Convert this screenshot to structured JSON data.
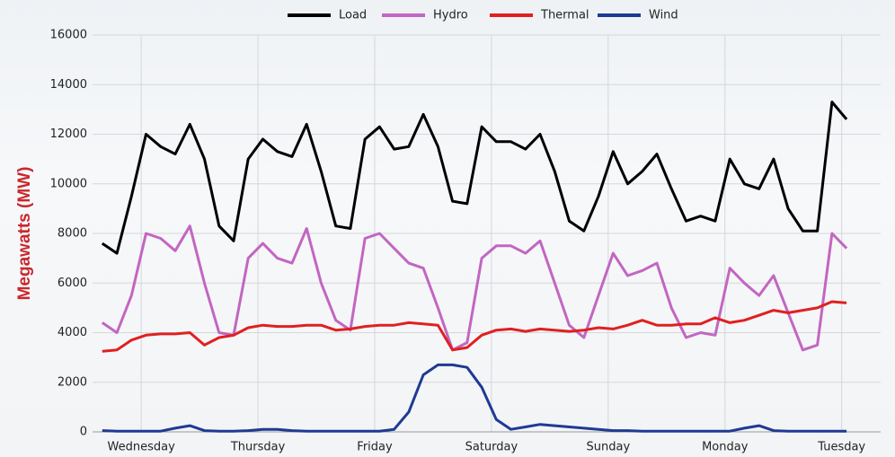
{
  "chart_data": {
    "type": "line",
    "y_label": "Megawatts (MW)",
    "x": [
      -8,
      -5,
      -2,
      1,
      4,
      7,
      10,
      13,
      16,
      19,
      22,
      25,
      28,
      31,
      34,
      37,
      40,
      43,
      46,
      49,
      52,
      55,
      58,
      61,
      64,
      67,
      70,
      73,
      76,
      79,
      82,
      85,
      88,
      91,
      94,
      97,
      100,
      103,
      106,
      109,
      112,
      115,
      118,
      121,
      124,
      127,
      130,
      133,
      136,
      139,
      142,
      145
    ],
    "xlim": [
      -10,
      152
    ],
    "xticks": [
      {
        "value": 0,
        "label": "Wednesday"
      },
      {
        "value": 24,
        "label": "Thursday"
      },
      {
        "value": 48,
        "label": "Friday"
      },
      {
        "value": 72,
        "label": "Saturday"
      },
      {
        "value": 96,
        "label": "Sunday"
      },
      {
        "value": 120,
        "label": "Monday"
      },
      {
        "value": 144,
        "label": "Tuesday"
      }
    ],
    "ylim": [
      0,
      16000
    ],
    "yticks": [
      0,
      2000,
      4000,
      6000,
      8000,
      10000,
      12000,
      14000,
      16000
    ],
    "grid": true,
    "legend": "top",
    "series": [
      {
        "name": "Load",
        "color": "#000000",
        "values": [
          7600,
          7200,
          9500,
          12000,
          11500,
          11200,
          12400,
          11000,
          8300,
          7700,
          11000,
          11800,
          11300,
          11100,
          12400,
          10500,
          8300,
          8200,
          11800,
          12300,
          11400,
          11500,
          12800,
          11500,
          9300,
          9200,
          12300,
          11700,
          11700,
          11400,
          12000,
          10500,
          8500,
          8100,
          9500,
          11300,
          10000,
          10500,
          11200,
          9800,
          8500,
          8700,
          8500,
          11000,
          10000,
          9800,
          11000,
          9000,
          8100,
          8100,
          13300,
          12600
        ]
      },
      {
        "name": "Hydro",
        "color": "#c266c2",
        "values": [
          4400,
          4000,
          5500,
          8000,
          7800,
          7300,
          8300,
          6000,
          4000,
          3900,
          7000,
          7600,
          7000,
          6800,
          8200,
          6000,
          4500,
          4100,
          7800,
          8000,
          7400,
          6800,
          6600,
          5000,
          3300,
          3600,
          7000,
          7500,
          7500,
          7200,
          7700,
          6000,
          4300,
          3800,
          5500,
          7200,
          6300,
          6500,
          6800,
          5000,
          3800,
          4000,
          3900,
          6600,
          6000,
          5500,
          6300,
          4800,
          3300,
          3500,
          8000,
          7400
        ]
      },
      {
        "name": "Thermal",
        "color": "#e02020",
        "values": [
          3250,
          3300,
          3700,
          3900,
          3950,
          3950,
          4000,
          3500,
          3800,
          3900,
          4200,
          4300,
          4250,
          4250,
          4300,
          4300,
          4100,
          4150,
          4250,
          4300,
          4300,
          4400,
          4350,
          4300,
          3300,
          3400,
          3900,
          4100,
          4150,
          4050,
          4150,
          4100,
          4050,
          4100,
          4200,
          4150,
          4300,
          4500,
          4300,
          4300,
          4350,
          4350,
          4600,
          4400,
          4500,
          4700,
          4900,
          4800,
          4900,
          5000,
          5250,
          5200
        ]
      },
      {
        "name": "Wind",
        "color": "#1f3a93",
        "values": [
          50,
          30,
          30,
          30,
          30,
          150,
          250,
          50,
          30,
          30,
          50,
          100,
          100,
          50,
          30,
          30,
          30,
          30,
          30,
          30,
          100,
          800,
          2300,
          2700,
          2700,
          2600,
          1800,
          500,
          100,
          200,
          300,
          250,
          200,
          150,
          100,
          50,
          50,
          30,
          30,
          30,
          30,
          30,
          30,
          30,
          150,
          250,
          50,
          30,
          30,
          30,
          30,
          30
        ]
      }
    ]
  }
}
